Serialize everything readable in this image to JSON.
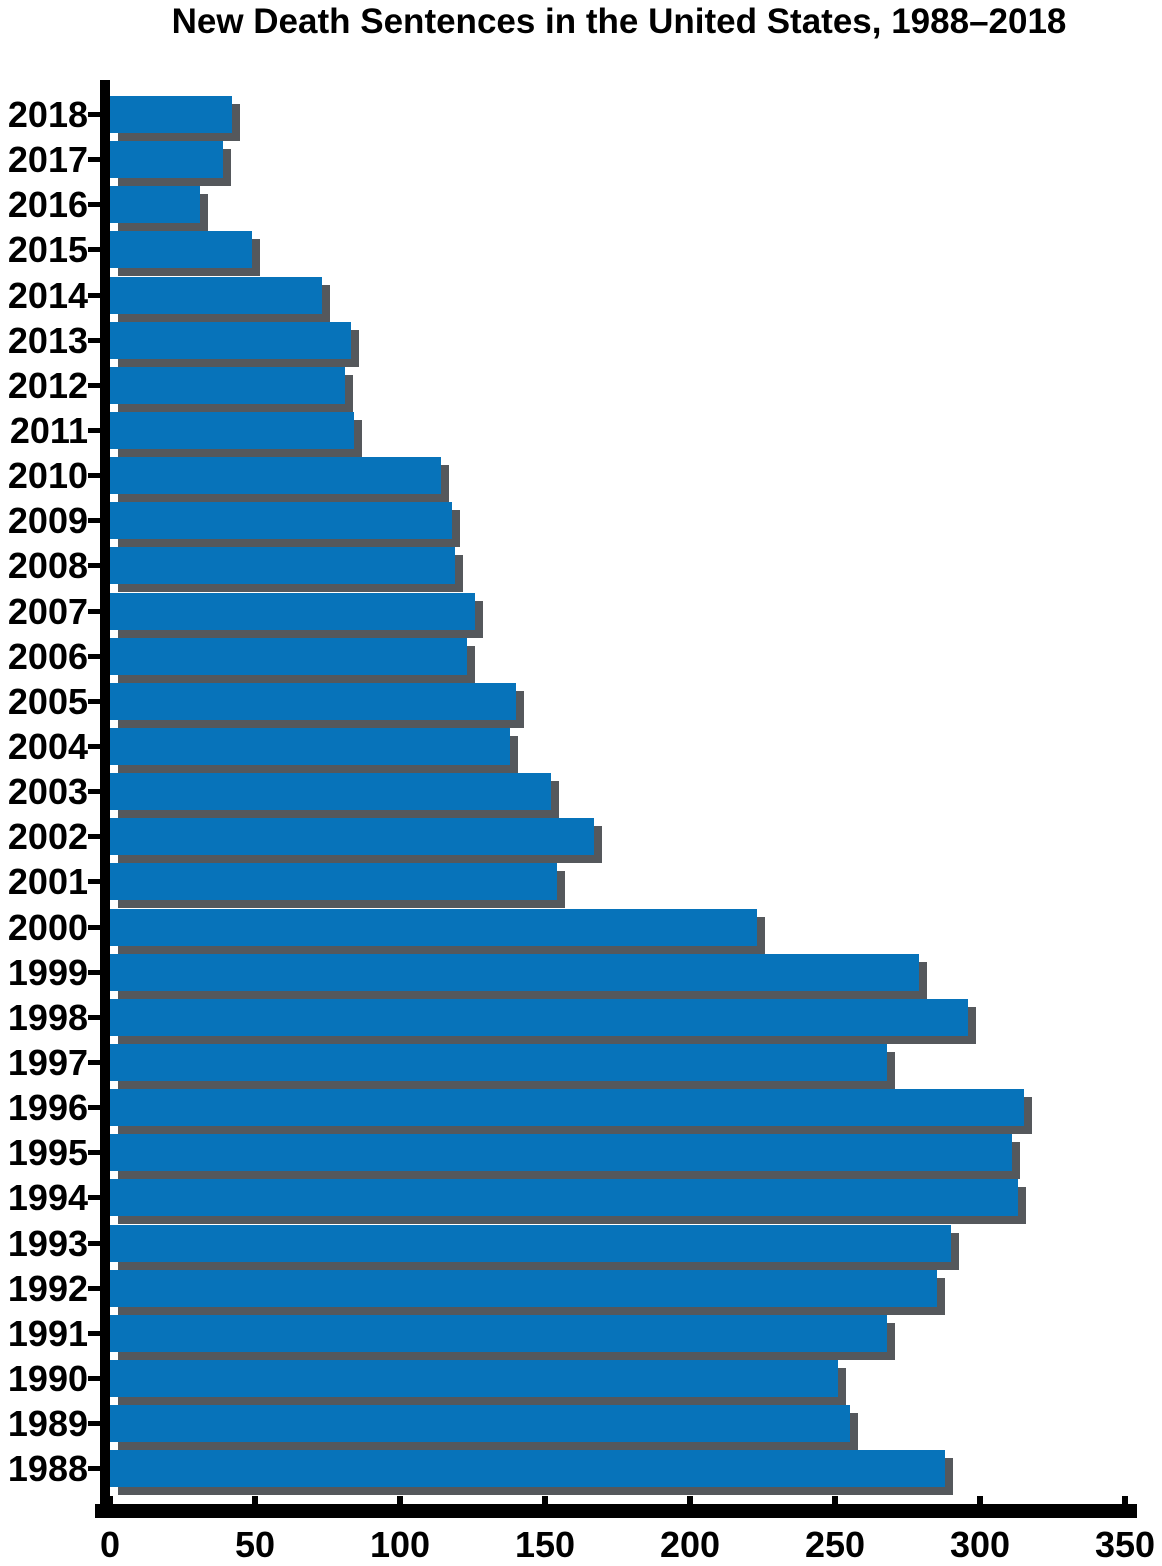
{
  "title": "New Death Sentences in the United States, 1988–2018",
  "chart_data": {
    "type": "bar",
    "orientation": "horizontal",
    "title": "New Death Sentences in the United States, 1988–2018",
    "categories": [
      "2018",
      "2017",
      "2016",
      "2015",
      "2014",
      "2013",
      "2012",
      "2011",
      "2010",
      "2009",
      "2008",
      "2007",
      "2006",
      "2005",
      "2004",
      "2003",
      "2002",
      "2001",
      "2000",
      "1999",
      "1998",
      "1997",
      "1996",
      "1995",
      "1994",
      "1993",
      "1992",
      "1991",
      "1990",
      "1989",
      "1988"
    ],
    "values": [
      42,
      39,
      31,
      49,
      73,
      83,
      81,
      84,
      114,
      118,
      119,
      126,
      123,
      140,
      138,
      152,
      167,
      154,
      223,
      279,
      296,
      268,
      315,
      311,
      313,
      290,
      285,
      268,
      251,
      255,
      288
    ],
    "series_name": "New death sentences",
    "xlabel": "",
    "ylabel": "",
    "xlim": [
      0,
      350
    ],
    "x_tick_values": [
      0,
      50,
      100,
      150,
      200,
      250,
      300,
      350
    ],
    "x_tick_labels": [
      "0",
      "50",
      "100",
      "150",
      "200",
      "250",
      "300",
      "350"
    ],
    "grid": false,
    "legend": false,
    "bar_color": "#0773BA",
    "shadow_color": "#55585C",
    "axis_color": "#000000",
    "text_color": "#000000",
    "background_color": "#FFFFFF"
  }
}
